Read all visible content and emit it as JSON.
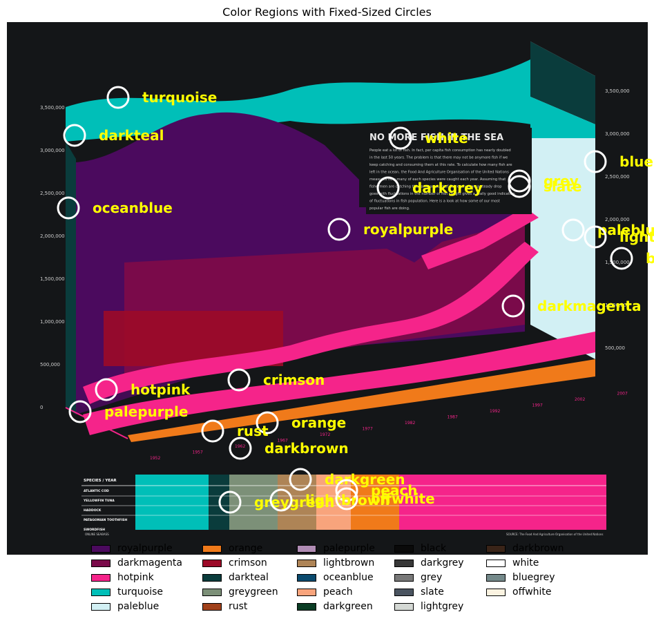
{
  "title": "Color Regions with Fixed-Sized Circles",
  "infographic": {
    "headline": "NO MORE FISH IN THE SEA",
    "body_lines": [
      "People eat a lot of fish. In fact, per capita fish consumption has nearly doubled",
      "in the last 50 years. The problem is that there may not be anymore fish if we",
      "keep catching and consuming them at this rate. To calculate how many fish are",
      "left in the ocean, the Food And Agriculture Organisation of the United Nations",
      "measures how many of each species were caught each year. Assuming that",
      "fishermen are catching the same amount of fish each year, a steady drop",
      "goes with fluctuations in the number of fish caught gives a really good indication",
      "of fluctuations in fish population. Here is a look at how some of our most",
      "popular fish are doing."
    ],
    "left_ticks": [
      "3,500,000",
      "3,000,000",
      "2,500,000",
      "2,000,000",
      "1,500,000",
      "1,000,000",
      "500,000",
      "0"
    ],
    "right_ticks": [
      "3,500,000",
      "3,000,000",
      "2,500,000",
      "2,000,000",
      "1,500,000",
      "1,000,000",
      "500,000"
    ],
    "years": [
      "1952",
      "1957",
      "1962",
      "1967",
      "1972",
      "1977",
      "1982",
      "1987",
      "1992",
      "1997",
      "2002",
      "2007"
    ],
    "species": [
      "ATLANTIC COD",
      "YELLOWFIN TUNA",
      "HADDOCK",
      "PATAGONIAN TOOTHFISH",
      "SWORDFISH"
    ],
    "table_header": "SPECIES / YEAR",
    "source": "SOURCE: The Food And Agriculture Organisation of the United Nations",
    "credit": "ONLINE SEABASS"
  },
  "chart_data": {
    "type": "scatter",
    "title": "Color Regions with Fixed-Sized Circles",
    "xlabel": "",
    "ylabel": "",
    "xlim": [
      0,
      947
    ],
    "ylim": [
      803,
      32
    ],
    "marker": "fixed-size white ring",
    "points": [
      {
        "label": "turquoise",
        "x": 171,
        "y": 141
      },
      {
        "label": "darkteal",
        "x": 108,
        "y": 196
      },
      {
        "label": "oceanblue",
        "x": 99,
        "y": 301
      },
      {
        "label": "white",
        "x": 580,
        "y": 200
      },
      {
        "label": "bluegrey",
        "x": 862,
        "y": 234
      },
      {
        "label": "grey",
        "x": 752,
        "y": 262
      },
      {
        "label": "slate",
        "x": 752,
        "y": 270
      },
      {
        "label": "darkgrey",
        "x": 562,
        "y": 272
      },
      {
        "label": "royalpurple",
        "x": 491,
        "y": 332
      },
      {
        "label": "paleblue",
        "x": 830,
        "y": 333
      },
      {
        "label": "lightgrey",
        "x": 862,
        "y": 343
      },
      {
        "label": "black",
        "x": 900,
        "y": 374
      },
      {
        "label": "darkmagenta",
        "x": 743,
        "y": 443
      },
      {
        "label": "crimson",
        "x": 346,
        "y": 550
      },
      {
        "label": "hotpink",
        "x": 154,
        "y": 564
      },
      {
        "label": "palepurple",
        "x": 116,
        "y": 596
      },
      {
        "label": "orange",
        "x": 387,
        "y": 612
      },
      {
        "label": "rust",
        "x": 308,
        "y": 624
      },
      {
        "label": "darkbrown",
        "x": 348,
        "y": 649
      },
      {
        "label": "darkgreen",
        "x": 435,
        "y": 694
      },
      {
        "label": "peach",
        "x": 502,
        "y": 710
      },
      {
        "label": "greygreen",
        "x": 333,
        "y": 727
      },
      {
        "label": "lightbrown",
        "x": 407,
        "y": 724
      },
      {
        "label": "offwhite",
        "x": 502,
        "y": 722
      }
    ],
    "legend": {
      "placement": "bottom",
      "columns": 5,
      "entries": [
        {
          "name": "royalpurple",
          "color": "#4b0a5e"
        },
        {
          "name": "darkmagenta",
          "color": "#7a0a4a"
        },
        {
          "name": "hotpink",
          "color": "#f5248a"
        },
        {
          "name": "turquoise",
          "color": "#00bfb8"
        },
        {
          "name": "paleblue",
          "color": "#d2f0f4"
        },
        {
          "name": "orange",
          "color": "#f07a1a"
        },
        {
          "name": "crimson",
          "color": "#9c0a28"
        },
        {
          "name": "darkteal",
          "color": "#0a3c3c"
        },
        {
          "name": "greygreen",
          "color": "#7c9078"
        },
        {
          "name": "rust",
          "color": "#a0401a"
        },
        {
          "name": "palepurple",
          "color": "#b08cb4"
        },
        {
          "name": "lightbrown",
          "color": "#ae8456"
        },
        {
          "name": "oceanblue",
          "color": "#0a4a6e"
        },
        {
          "name": "peach",
          "color": "#f8a47c"
        },
        {
          "name": "darkgreen",
          "color": "#0a3c24"
        },
        {
          "name": "black",
          "color": "#0a0a0a"
        },
        {
          "name": "darkgrey",
          "color": "#383838"
        },
        {
          "name": "grey",
          "color": "#787878"
        },
        {
          "name": "slate",
          "color": "#4a5460"
        },
        {
          "name": "lightgrey",
          "color": "#d4d8d4"
        },
        {
          "name": "darkbrown",
          "color": "#3a2418"
        },
        {
          "name": "white",
          "color": "#ffffff"
        },
        {
          "name": "bluegrey",
          "color": "#74898a"
        },
        {
          "name": "offwhite",
          "color": "#fbf3e1"
        }
      ]
    },
    "label_color": "#ffff00",
    "ring_color": "#ffffff"
  }
}
